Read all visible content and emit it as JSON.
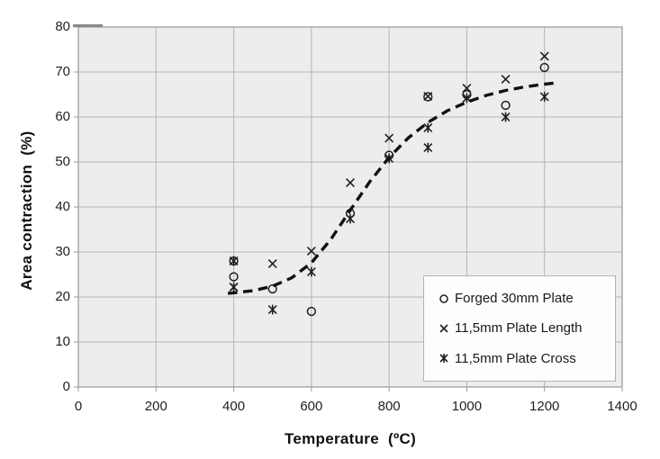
{
  "chart_data": {
    "type": "scatter",
    "title": "",
    "xlabel": "Temperature  (ºC)",
    "ylabel": "Area contraction  (%)",
    "xlim": [
      0,
      1400
    ],
    "ylim": [
      0,
      80
    ],
    "xticks": [
      0,
      200,
      400,
      600,
      800,
      1000,
      1200,
      1400
    ],
    "yticks": [
      0,
      10,
      20,
      30,
      40,
      50,
      60,
      70,
      80
    ],
    "grid": true,
    "legend_position": "lower-right",
    "series": [
      {
        "name": "Forged 30mm Plate",
        "marker": "circle",
        "points": [
          [
            400,
            28
          ],
          [
            400,
            24.5
          ],
          [
            500,
            21.8
          ],
          [
            600,
            16.8
          ],
          [
            700,
            38.6
          ],
          [
            800,
            51.5
          ],
          [
            900,
            64.5
          ],
          [
            1000,
            65
          ],
          [
            1100,
            62.6
          ],
          [
            1200,
            71
          ]
        ]
      },
      {
        "name": "11,5mm Plate Length",
        "marker": "x",
        "points": [
          [
            400,
            22.2
          ],
          [
            500,
            27.4
          ],
          [
            600,
            30.2
          ],
          [
            700,
            45.4
          ],
          [
            800,
            55.3
          ],
          [
            900,
            64.6
          ],
          [
            1000,
            66.4
          ],
          [
            1100,
            68.4
          ],
          [
            1200,
            73.5
          ]
        ]
      },
      {
        "name": "11,5mm Plate Cross",
        "marker": "asterisk",
        "points": [
          [
            400,
            28
          ],
          [
            400,
            22.2
          ],
          [
            500,
            17.2
          ],
          [
            600,
            25.6
          ],
          [
            700,
            37.4
          ],
          [
            800,
            50.8
          ],
          [
            900,
            57.6
          ],
          [
            900,
            53.2
          ],
          [
            1000,
            64.2
          ],
          [
            1100,
            60
          ],
          [
            1200,
            64.5
          ]
        ]
      }
    ],
    "trend_line": {
      "style": "dashed",
      "points": [
        [
          385,
          20.8
        ],
        [
          450,
          21.4
        ],
        [
          500,
          22.4
        ],
        [
          550,
          24.3
        ],
        [
          600,
          27.6
        ],
        [
          650,
          32.8
        ],
        [
          700,
          39.3
        ],
        [
          750,
          45.6
        ],
        [
          800,
          51
        ],
        [
          850,
          55.4
        ],
        [
          900,
          58.8
        ],
        [
          950,
          61.4
        ],
        [
          1000,
          63.3
        ],
        [
          1050,
          64.8
        ],
        [
          1100,
          65.9
        ],
        [
          1150,
          66.7
        ],
        [
          1200,
          67.3
        ],
        [
          1232,
          67.6
        ]
      ]
    }
  },
  "colors": {
    "plot_background": "#ededed",
    "gridline": "#b5b5b5",
    "plot_border": "#999999",
    "marker": "#1f1f1f",
    "trend": "#111111",
    "legend_border": "#b3b3b3",
    "legend_background": "#fdfdfd"
  }
}
